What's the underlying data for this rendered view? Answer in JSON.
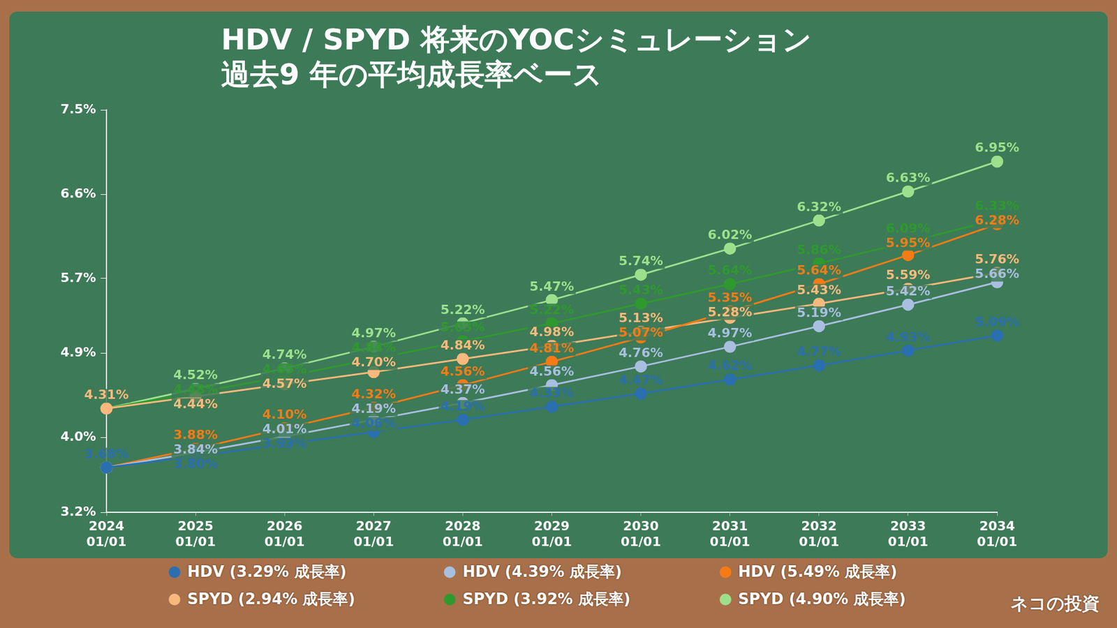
{
  "chart_data": {
    "type": "line",
    "title": [
      "HDV / SPYD 将来のYOCシミュレーション",
      "過去9 年の平均成長率ベース"
    ],
    "annotations": [
      "ネコの投資"
    ],
    "categories": [
      "2024\n01/01",
      "2025\n01/01",
      "2026\n01/01",
      "2027\n01/01",
      "2028\n01/01",
      "2029\n01/01",
      "2030\n01/01",
      "2031\n01/01",
      "2032\n01/01",
      "2033\n01/01",
      "2034\n01/01"
    ],
    "series": [
      {
        "name": "HDV (3.29% 成長率)",
        "color": "#2a6fb0",
        "values": [
          3.68,
          3.8,
          3.93,
          4.06,
          4.19,
          4.33,
          4.47,
          4.62,
          4.77,
          4.93,
          5.09
        ],
        "value_labels": [
          "3.68%",
          "3.80%",
          "3.93%",
          "4.06%",
          "4.19%",
          "4.33%",
          "4.47%",
          "4.62%",
          "4.77%",
          "4.93%",
          "5.09%"
        ]
      },
      {
        "name": "HDV (4.39% 成長率)",
        "color": "#a8bfe0",
        "values": [
          3.68,
          3.84,
          4.01,
          4.19,
          4.37,
          4.56,
          4.76,
          4.97,
          5.19,
          5.42,
          5.66
        ],
        "value_labels": [
          "3.68%",
          "3.84%",
          "4.01%",
          "4.19%",
          "4.37%",
          "4.56%",
          "4.76%",
          "4.97%",
          "5.19%",
          "5.42%",
          "5.66%"
        ]
      },
      {
        "name": "HDV (5.49% 成長率)",
        "color": "#f47b16",
        "values": [
          3.68,
          3.88,
          4.1,
          4.32,
          4.56,
          4.81,
          5.07,
          5.35,
          5.64,
          5.95,
          6.28
        ],
        "value_labels": [
          "3.68%",
          "3.88%",
          "4.10%",
          "4.32%",
          "4.56%",
          "4.81%",
          "5.07%",
          "5.35%",
          "5.64%",
          "5.95%",
          "6.28%"
        ]
      },
      {
        "name": "SPYD (2.94% 成長率)",
        "color": "#f9b97c",
        "values": [
          4.31,
          4.44,
          4.57,
          4.7,
          4.84,
          4.98,
          5.13,
          5.28,
          5.43,
          5.59,
          5.76
        ],
        "value_labels": [
          "4.31%",
          "4.44%",
          "4.57%",
          "4.70%",
          "4.84%",
          "4.98%",
          "5.13%",
          "5.28%",
          "5.43%",
          "5.59%",
          "5.76%"
        ]
      },
      {
        "name": "SPYD (3.92% 成長率)",
        "color": "#2e9a2e",
        "values": [
          4.31,
          4.48,
          4.65,
          4.84,
          5.03,
          5.22,
          5.43,
          5.64,
          5.86,
          6.09,
          6.33
        ],
        "value_labels": [
          "4.31%",
          "4.48%",
          "4.65%",
          "4.84%",
          "5.03%",
          "5.22%",
          "5.43%",
          "5.64%",
          "5.86%",
          "6.09%",
          "6.33%"
        ]
      },
      {
        "name": "SPYD (4.90% 成長率)",
        "color": "#9de08c",
        "values": [
          4.31,
          4.52,
          4.74,
          4.97,
          5.22,
          5.47,
          5.74,
          6.02,
          6.32,
          6.63,
          6.95
        ],
        "value_labels": [
          "4.31%",
          "4.52%",
          "4.74%",
          "4.97%",
          "5.22%",
          "5.47%",
          "5.74%",
          "6.02%",
          "6.32%",
          "6.63%",
          "6.95%"
        ]
      }
    ],
    "ylim": [
      3.2,
      7.5
    ],
    "yticks": [
      {
        "value": 3.2,
        "label": "3.2%"
      },
      {
        "value": 4.0,
        "label": "4.0%"
      },
      {
        "value": 4.9,
        "label": "4.9%"
      },
      {
        "value": 5.7,
        "label": "5.7%"
      },
      {
        "value": 6.6,
        "label": "6.6%"
      },
      {
        "value": 7.5,
        "label": "7.5%"
      }
    ],
    "grid": false,
    "legend": "bottom",
    "data_labels": true,
    "marker": "circle"
  }
}
